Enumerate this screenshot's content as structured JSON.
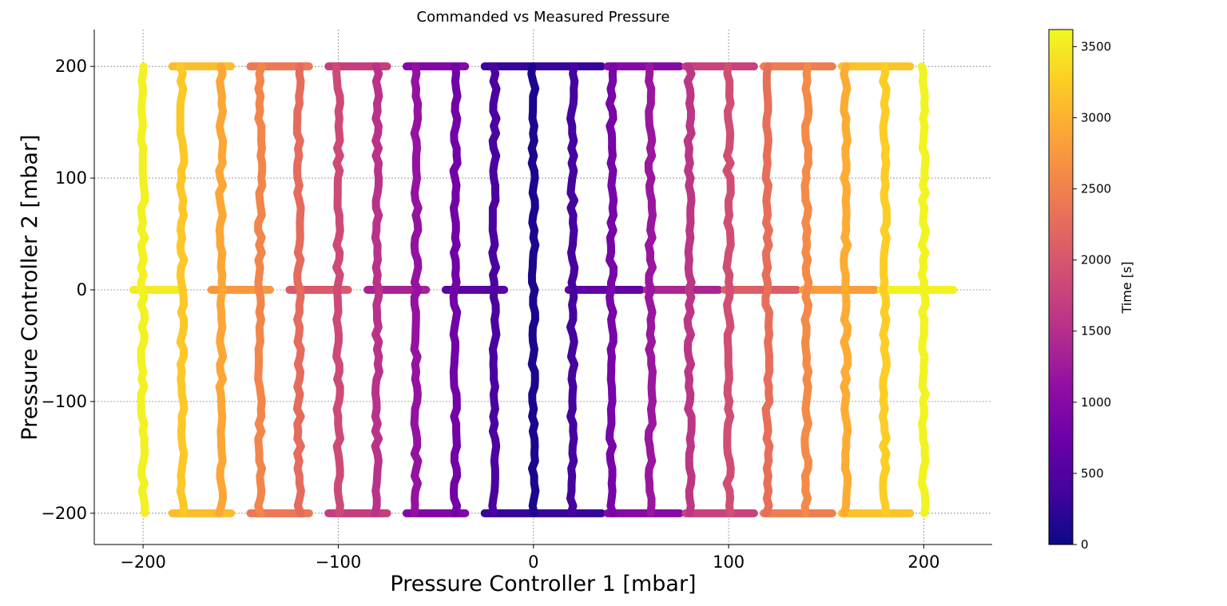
{
  "chart_data": {
    "type": "scatter",
    "title": "Commanded vs Measured Pressure",
    "xlabel": "Pressure Controller 1 [mbar]",
    "ylabel": "Pressure Controller 2 [mbar]",
    "xlim": [
      -225,
      235
    ],
    "ylim": [
      -228,
      233
    ],
    "x_ticks": [
      -200,
      -100,
      0,
      100,
      200
    ],
    "y_ticks": [
      -200,
      -100,
      0,
      100,
      200
    ],
    "x_tick_labels": [
      "−200",
      "−100",
      "0",
      "100",
      "200"
    ],
    "y_tick_labels": [
      "−200",
      "−100",
      "0",
      "100",
      "200"
    ],
    "grid": true,
    "colormap": "plasma",
    "colorbar": {
      "label": "Time [s]",
      "range": [
        0,
        3620
      ],
      "ticks": [
        0,
        500,
        1000,
        1500,
        2000,
        2500,
        3000,
        3500
      ],
      "tick_labels": [
        "0",
        "500",
        "1000",
        "1500",
        "2000",
        "2500",
        "3000",
        "3500"
      ]
    },
    "description_levels": [
      -200,
      -180,
      -160,
      -140,
      -120,
      -100,
      -80,
      -60,
      -40,
      -20,
      0,
      20,
      40,
      60,
      80,
      100,
      120,
      140,
      160,
      180,
      200
    ],
    "vertical_sweeps": [
      {
        "x": 0,
        "y_range": [
          -200,
          200
        ],
        "time": 100
      },
      {
        "x": 20,
        "y_range": [
          -200,
          200
        ],
        "time": 400
      },
      {
        "x": -20,
        "y_range": [
          -200,
          200
        ],
        "time": 450
      },
      {
        "x": 40,
        "y_range": [
          -200,
          200
        ],
        "time": 850
      },
      {
        "x": -40,
        "y_range": [
          -200,
          200
        ],
        "time": 800
      },
      {
        "x": 60,
        "y_range": [
          -200,
          200
        ],
        "time": 1200
      },
      {
        "x": -60,
        "y_range": [
          -200,
          200
        ],
        "time": 1150
      },
      {
        "x": 80,
        "y_range": [
          -200,
          200
        ],
        "time": 1600
      },
      {
        "x": -80,
        "y_range": [
          -200,
          200
        ],
        "time": 1550
      },
      {
        "x": 100,
        "y_range": [
          -200,
          200
        ],
        "time": 1900
      },
      {
        "x": -100,
        "y_range": [
          -200,
          200
        ],
        "time": 1850
      },
      {
        "x": 120,
        "y_range": [
          -200,
          200
        ],
        "time": 2300
      },
      {
        "x": -120,
        "y_range": [
          -200,
          200
        ],
        "time": 2250
      },
      {
        "x": 140,
        "y_range": [
          -200,
          200
        ],
        "time": 2600
      },
      {
        "x": -140,
        "y_range": [
          -200,
          200
        ],
        "time": 2550
      },
      {
        "x": 160,
        "y_range": [
          -200,
          200
        ],
        "time": 2950
      },
      {
        "x": -160,
        "y_range": [
          -200,
          200
        ],
        "time": 2900
      },
      {
        "x": 180,
        "y_range": [
          -200,
          200
        ],
        "time": 3250
      },
      {
        "x": -180,
        "y_range": [
          -200,
          200
        ],
        "time": 3200
      },
      {
        "x": 200,
        "y_range": [
          -200,
          200
        ],
        "time": 3580
      },
      {
        "x": -200,
        "y_range": [
          -200,
          200
        ],
        "time": 3550
      }
    ],
    "horizontal_segments": [
      {
        "y": 200,
        "x_range": [
          -25,
          35
        ],
        "time": 300
      },
      {
        "y": -200,
        "x_range": [
          -25,
          35
        ],
        "time": 300
      },
      {
        "y": 0,
        "x_range": [
          -45,
          -15
        ],
        "time": 600
      },
      {
        "y": 0,
        "x_range": [
          18,
          55
        ],
        "time": 650
      },
      {
        "y": 200,
        "x_range": [
          -65,
          -35
        ],
        "time": 950
      },
      {
        "y": -200,
        "x_range": [
          -65,
          -35
        ],
        "time": 950
      },
      {
        "y": 200,
        "x_range": [
          38,
          75
        ],
        "time": 1000
      },
      {
        "y": -200,
        "x_range": [
          38,
          75
        ],
        "time": 1000
      },
      {
        "y": 0,
        "x_range": [
          -85,
          -55
        ],
        "time": 1350
      },
      {
        "y": 0,
        "x_range": [
          58,
          95
        ],
        "time": 1400
      },
      {
        "y": 200,
        "x_range": [
          -105,
          -75
        ],
        "time": 1700
      },
      {
        "y": -200,
        "x_range": [
          -105,
          -75
        ],
        "time": 1700
      },
      {
        "y": 200,
        "x_range": [
          78,
          113
        ],
        "time": 1750
      },
      {
        "y": -200,
        "x_range": [
          78,
          113
        ],
        "time": 1750
      },
      {
        "y": 0,
        "x_range": [
          -125,
          -95
        ],
        "time": 2050
      },
      {
        "y": 0,
        "x_range": [
          98,
          135
        ],
        "time": 2100
      },
      {
        "y": 200,
        "x_range": [
          -145,
          -115
        ],
        "time": 2400
      },
      {
        "y": -200,
        "x_range": [
          -145,
          -115
        ],
        "time": 2400
      },
      {
        "y": 200,
        "x_range": [
          118,
          153
        ],
        "time": 2450
      },
      {
        "y": -200,
        "x_range": [
          118,
          153
        ],
        "time": 2450
      },
      {
        "y": 0,
        "x_range": [
          -165,
          -135
        ],
        "time": 2750
      },
      {
        "y": 0,
        "x_range": [
          138,
          175
        ],
        "time": 2800
      },
      {
        "y": 200,
        "x_range": [
          -185,
          -155
        ],
        "time": 3100
      },
      {
        "y": -200,
        "x_range": [
          -185,
          -155
        ],
        "time": 3100
      },
      {
        "y": 200,
        "x_range": [
          158,
          193
        ],
        "time": 3150
      },
      {
        "y": -200,
        "x_range": [
          158,
          193
        ],
        "time": 3150
      },
      {
        "y": 0,
        "x_range": [
          -205,
          -180
        ],
        "time": 3500
      },
      {
        "y": 0,
        "x_range": [
          178,
          215
        ],
        "time": 3550
      }
    ]
  }
}
